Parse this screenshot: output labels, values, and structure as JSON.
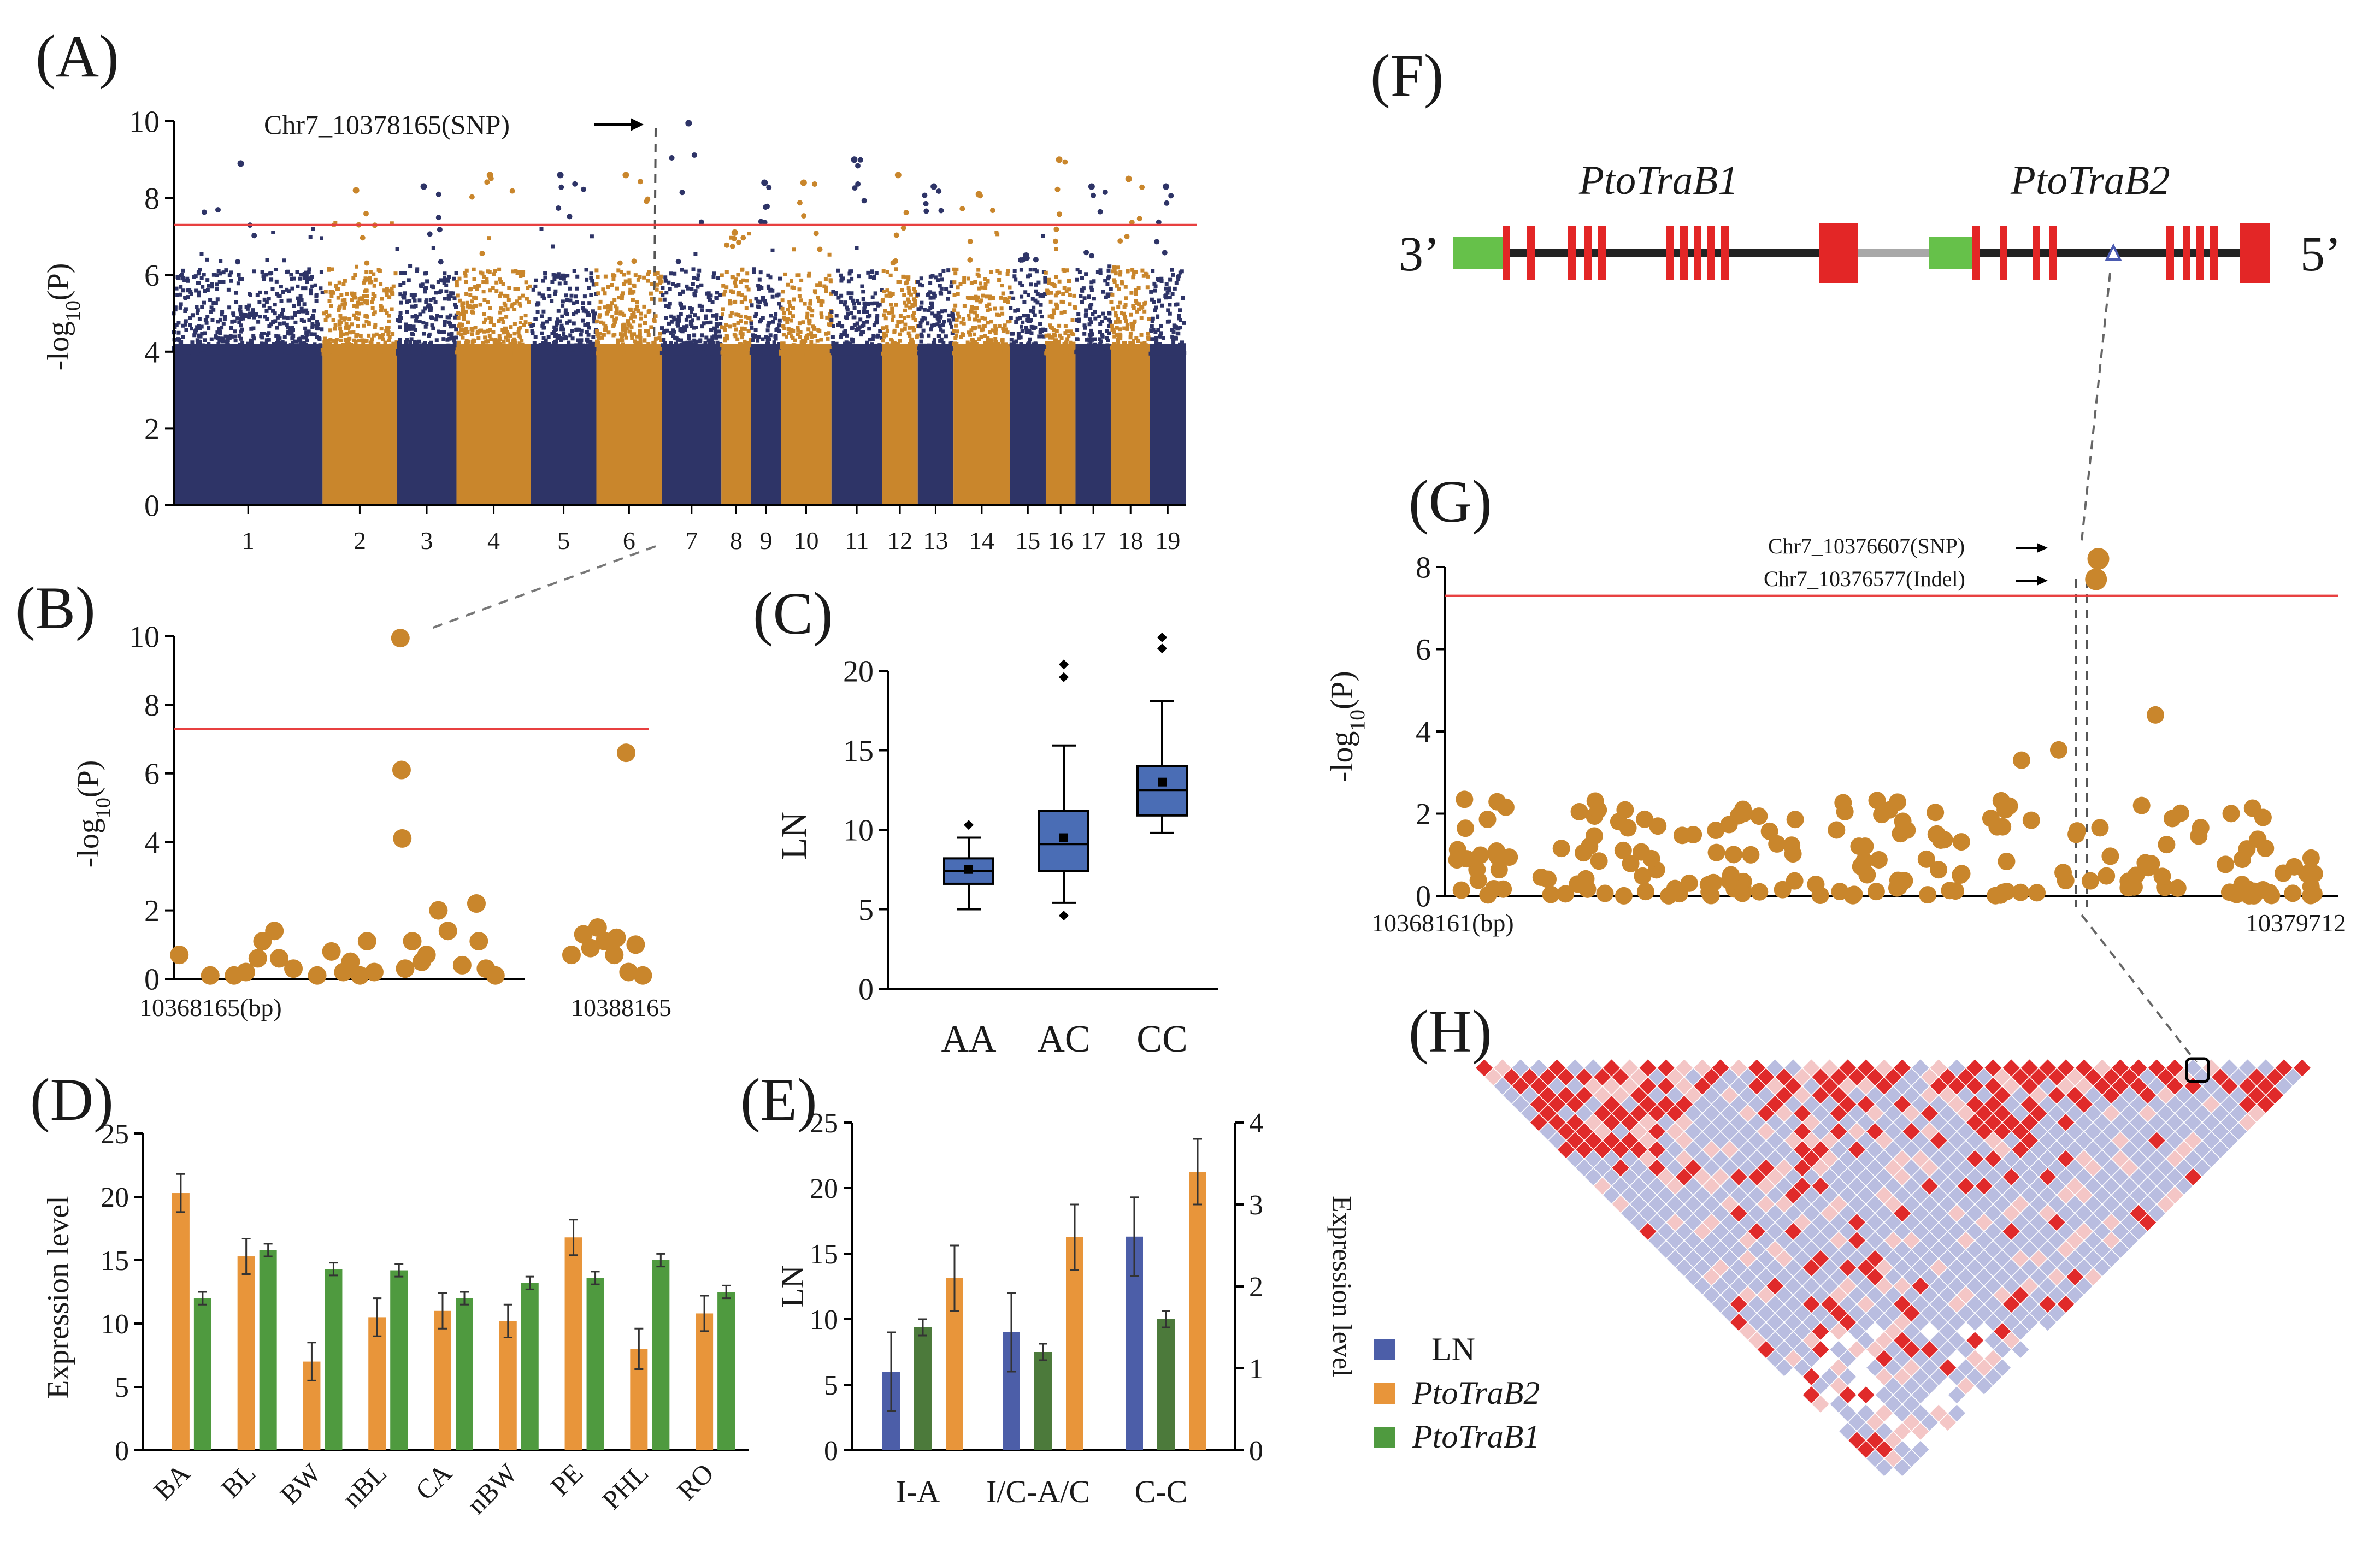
{
  "panel_letters": {
    "A": "(A)",
    "B": "(B)",
    "C": "(C)",
    "D": "(D)",
    "E": "(E)",
    "F": "(F)",
    "G": "(G)",
    "H": "(H)"
  },
  "colors": {
    "navy": "#2e3467",
    "gold": "#c9862c",
    "threshold": "#e84040",
    "box_fill": "#4a6db5",
    "orange": "#e8953a",
    "green": "#4f9a3f",
    "ln_blue": "#4c5ea8",
    "dark_green": "#4c7a3b",
    "utr_green": "#66c14a",
    "exon_red": "#e32626",
    "ld_red": "#e02a2a",
    "ld_pink": "#f4c6c6",
    "ld_lavender": "#b9bde0"
  },
  "chart_data": [
    {
      "panel": "A",
      "type": "scatter",
      "title": "Manhattan plot",
      "ylabel": "-log10(P)",
      "ylim": [
        0,
        10
      ],
      "yticks": [
        "0",
        "2",
        "4",
        "6",
        "8",
        "10"
      ],
      "chromosomes": [
        "1",
        "2",
        "3",
        "4",
        "5",
        "6",
        "7",
        "8",
        "9",
        "10",
        "11",
        "12",
        "13",
        "14",
        "15",
        "16",
        "17",
        "18",
        "19"
      ],
      "chromosome_widths": [
        50,
        25,
        20,
        25,
        22,
        22,
        20,
        10,
        10,
        17,
        17,
        12,
        12,
        19,
        12,
        10,
        12,
        13,
        12
      ],
      "chromosome_peaks": [
        8.9,
        8.2,
        8.3,
        8.6,
        8.6,
        8.6,
        9.95,
        7.1,
        8.4,
        8.4,
        9.0,
        8.6,
        8.3,
        8.1,
        6.5,
        9.0,
        8.3,
        8.5,
        8.3
      ],
      "threshold": 7.3,
      "annotation": "Chr7_10378165(SNP)"
    },
    {
      "panel": "B",
      "type": "scatter",
      "ylabel": "-log10(P)",
      "ylim": [
        0,
        10
      ],
      "yticks": [
        "0",
        "2",
        "4",
        "6",
        "8",
        "10"
      ],
      "xlim": [
        10368165,
        10388165
      ],
      "xlabel_left": "10368165(bp)",
      "xlabel_right": "10388165",
      "threshold": 7.3,
      "points": [
        [
          10368400,
          0.7
        ],
        [
          10369700,
          0.1
        ],
        [
          10370700,
          0.1
        ],
        [
          10371200,
          0.2
        ],
        [
          10371700,
          0.6
        ],
        [
          10371900,
          1.1
        ],
        [
          10372400,
          1.4
        ],
        [
          10372600,
          0.6
        ],
        [
          10373200,
          0.3
        ],
        [
          10374200,
          0.1
        ],
        [
          10374800,
          0.8
        ],
        [
          10375300,
          0.2
        ],
        [
          10375600,
          0.5
        ],
        [
          10376000,
          0.1
        ],
        [
          10376300,
          1.1
        ],
        [
          10376600,
          0.2
        ],
        [
          10377700,
          9.95
        ],
        [
          10377750,
          6.1
        ],
        [
          10377780,
          4.1
        ],
        [
          10377900,
          0.3
        ],
        [
          10378200,
          1.1
        ],
        [
          10378600,
          0.5
        ],
        [
          10378800,
          0.7
        ],
        [
          10379300,
          2.0
        ],
        [
          10379700,
          1.4
        ],
        [
          10380300,
          0.4
        ],
        [
          10380900,
          2.2
        ],
        [
          10381000,
          1.1
        ],
        [
          10381300,
          0.3
        ],
        [
          10381700,
          0.1
        ],
        [
          10384900,
          0.7
        ],
        [
          10385400,
          1.3
        ],
        [
          10385700,
          0.9
        ],
        [
          10386000,
          1.5
        ],
        [
          10386300,
          1.1
        ],
        [
          10386700,
          0.7
        ],
        [
          10386800,
          1.2
        ],
        [
          10387200,
          6.6
        ],
        [
          10387300,
          0.2
        ],
        [
          10387600,
          1.0
        ],
        [
          10387900,
          0.1
        ]
      ]
    },
    {
      "panel": "C",
      "type": "box",
      "ylabel": "LN",
      "ylim": [
        0,
        20
      ],
      "yticks": [
        "0",
        "5",
        "10",
        "15",
        "20"
      ],
      "categories": [
        "AA",
        "AC",
        "CC"
      ],
      "boxes": [
        {
          "min": 5.0,
          "q1": 6.6,
          "median": 7.4,
          "q3": 8.2,
          "max": 9.5,
          "mean": 7.5,
          "outliers": [
            10.3
          ]
        },
        {
          "min": 5.4,
          "q1": 7.4,
          "median": 9.1,
          "q3": 11.2,
          "max": 15.3,
          "mean": 9.5,
          "outliers": [
            4.6,
            19.6,
            20.4
          ]
        },
        {
          "min": 9.8,
          "q1": 10.9,
          "median": 12.5,
          "q3": 14.0,
          "max": 18.1,
          "mean": 13.0,
          "outliers": [
            21.4,
            22.1
          ]
        }
      ]
    },
    {
      "panel": "D",
      "type": "bar",
      "ylabel": "Expression level",
      "ylim": [
        0,
        25
      ],
      "yticks": [
        "0",
        "5",
        "10",
        "15",
        "20",
        "25"
      ],
      "categories": [
        "BA",
        "BL",
        "BW",
        "nBL",
        "CA",
        "nBW",
        "PE",
        "PHL",
        "RO"
      ],
      "series": [
        {
          "name": "PtoTraB2",
          "values": [
            20.3,
            15.3,
            7.0,
            10.5,
            11.0,
            10.2,
            16.8,
            8.0,
            10.8
          ],
          "errors": [
            1.5,
            1.4,
            1.5,
            1.5,
            1.4,
            1.3,
            1.4,
            1.6,
            1.4
          ]
        },
        {
          "name": "PtoTraB1",
          "values": [
            12.0,
            15.8,
            14.3,
            14.2,
            12.0,
            13.2,
            13.6,
            15.0,
            12.5
          ],
          "errors": [
            0.5,
            0.5,
            0.5,
            0.5,
            0.5,
            0.5,
            0.5,
            0.5,
            0.5
          ]
        }
      ]
    },
    {
      "panel": "E",
      "type": "bar",
      "ylabel": "LN",
      "ylim": [
        0,
        25
      ],
      "yticks": [
        "0",
        "5",
        "10",
        "15",
        "20",
        "25"
      ],
      "y2label": "Expression level",
      "y2lim": [
        0,
        4
      ],
      "y2ticks": [
        "0",
        "1",
        "2",
        "3",
        "4"
      ],
      "categories": [
        "I-A",
        "I/C-A/C",
        "C-C"
      ],
      "series": [
        {
          "name": "LN",
          "axis": "left",
          "values": [
            6.0,
            9.0,
            16.3
          ],
          "errors": [
            3.0,
            3.0,
            3.0
          ]
        },
        {
          "name": "PtoTraB1",
          "axis": "right",
          "values": [
            1.5,
            1.2,
            1.6
          ],
          "errors": [
            0.1,
            0.1,
            0.1
          ]
        },
        {
          "name": "PtoTraB2",
          "axis": "right",
          "values": [
            2.1,
            2.6,
            3.4
          ],
          "errors": [
            0.4,
            0.4,
            0.4
          ]
        }
      ]
    },
    {
      "panel": "G",
      "type": "scatter",
      "ylabel": "-log10(P)",
      "ylim": [
        0,
        8
      ],
      "yticks": [
        "0",
        "2",
        "4",
        "6",
        "8"
      ],
      "xlim": [
        10368161,
        10379712
      ],
      "xlabel_left": "10368161(bp)",
      "xlabel_right": "10379712",
      "threshold": 7.3,
      "annotations": [
        {
          "label": "Chr7_10376607(SNP)",
          "x": 10376607,
          "y": 8.2
        },
        {
          "label": "Chr7_10376577(Indel)",
          "x": 10376577,
          "y": 7.7
        }
      ]
    }
  ],
  "gene_model": {
    "left_end": "3’",
    "right_end": "5’",
    "gene1": "PtoTraB1",
    "gene2": "PtoTraB2"
  },
  "legend": {
    "ln": "LN",
    "b2": "PtoTraB2",
    "b1": "PtoTraB1"
  }
}
